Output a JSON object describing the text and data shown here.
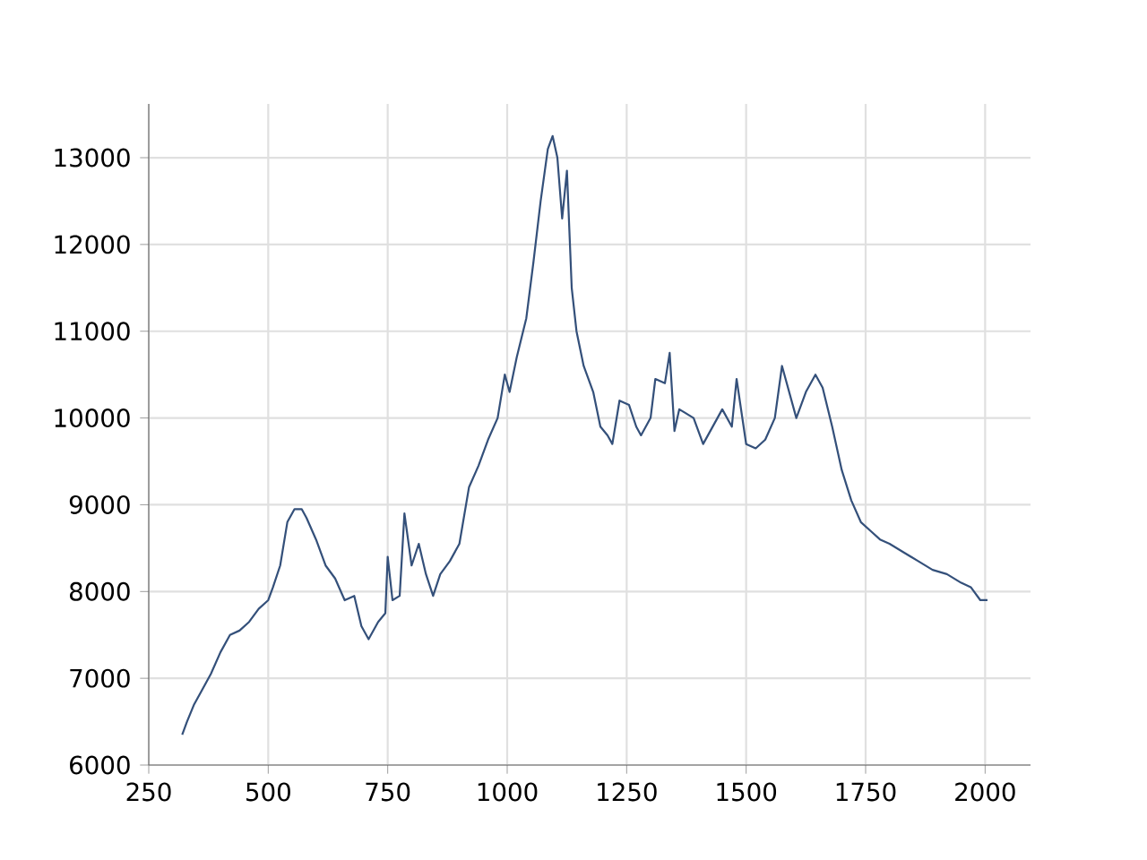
{
  "chart_data": {
    "type": "line",
    "x": [
      320,
      330,
      345,
      360,
      380,
      400,
      420,
      440,
      460,
      480,
      500,
      510,
      525,
      540,
      555,
      570,
      580,
      600,
      620,
      640,
      660,
      680,
      695,
      710,
      730,
      745,
      750,
      760,
      775,
      785,
      800,
      815,
      830,
      845,
      860,
      880,
      900,
      920,
      940,
      960,
      980,
      995,
      1005,
      1020,
      1040,
      1055,
      1070,
      1085,
      1095,
      1105,
      1115,
      1125,
      1135,
      1145,
      1160,
      1180,
      1195,
      1210,
      1220,
      1235,
      1255,
      1270,
      1280,
      1300,
      1310,
      1330,
      1340,
      1350,
      1360,
      1390,
      1410,
      1430,
      1450,
      1470,
      1480,
      1500,
      1520,
      1540,
      1560,
      1575,
      1590,
      1605,
      1625,
      1645,
      1660,
      1680,
      1700,
      1720,
      1740,
      1760,
      1780,
      1800,
      1830,
      1860,
      1890,
      1920,
      1950,
      1970,
      1990,
      2005
    ],
    "series": [
      {
        "color": "#34507a",
        "values": [
          6350,
          6500,
          6700,
          6850,
          7050,
          7300,
          7500,
          7550,
          7650,
          7800,
          7900,
          8050,
          8300,
          8800,
          8950,
          8950,
          8850,
          8600,
          8300,
          8150,
          7900,
          7950,
          7600,
          7450,
          7650,
          7750,
          8400,
          7900,
          7950,
          8900,
          8300,
          8550,
          8200,
          7950,
          8200,
          8350,
          8550,
          9200,
          9450,
          9750,
          10000,
          10500,
          10300,
          10700,
          11150,
          11800,
          12500,
          13100,
          13250,
          13000,
          12300,
          12850,
          11500,
          11000,
          10600,
          10300,
          9900,
          9800,
          9700,
          10200,
          10150,
          9900,
          9800,
          10000,
          10450,
          10400,
          10750,
          9850,
          10100,
          10000,
          9700,
          9900,
          10100,
          9900,
          10450,
          9700,
          9650,
          9750,
          10000,
          10600,
          10300,
          10000,
          10300,
          10500,
          10350,
          9900,
          9400,
          9050,
          8800,
          8700,
          8600,
          8550,
          8450,
          8350,
          8250,
          8200,
          8100,
          8050,
          7900,
          7900
        ]
      }
    ],
    "xlim": [
      250,
      2095
    ],
    "ylim": [
      6000,
      13620
    ],
    "xticks": [
      250,
      500,
      750,
      1000,
      1250,
      1500,
      1750,
      2000
    ],
    "yticks": [
      6000,
      7000,
      8000,
      9000,
      10000,
      11000,
      12000,
      13000
    ],
    "grid": true,
    "marker": "none",
    "line_style": "solid"
  }
}
